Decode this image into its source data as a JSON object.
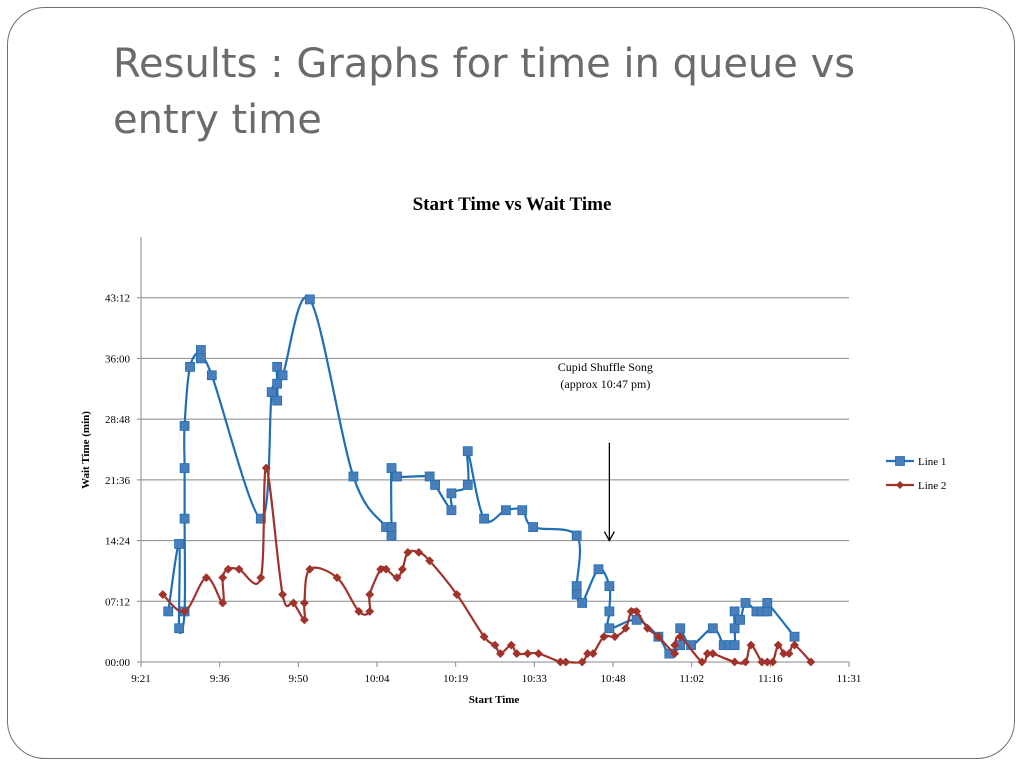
{
  "slide": {
    "title": "Results :  Graphs for time in queue vs entry time"
  },
  "chart_data": {
    "type": "line",
    "title": "Start Time vs Wait Time",
    "xlabel": "Start Time",
    "ylabel": "Wait Time (min)",
    "x_ticks": [
      "9:21",
      "9:36",
      "9:50",
      "10:04",
      "10:19",
      "10:33",
      "10:48",
      "11:02",
      "11:16",
      "11:31"
    ],
    "y_ticks": [
      "00:00",
      "07:12",
      "14:24",
      "21:36",
      "28:48",
      "36:00",
      "43:12"
    ],
    "xlim": [
      "9:21",
      "11:31"
    ],
    "ylim": [
      "00:00",
      "50:24"
    ],
    "grid": "horizontal",
    "legend_position": "right",
    "annotation": {
      "lines": [
        "Cupid Shuffle Song",
        "(approx 10:47 pm)"
      ],
      "arrow_x": "10:47",
      "arrow_from_y": "26:00",
      "arrow_to_y": "14:24"
    },
    "series": [
      {
        "name": "Line 1",
        "color": "#1f6fb4",
        "marker_color": "#4a7ebb",
        "marker": "square",
        "points": [
          [
            "9:26",
            "06:00"
          ],
          [
            "9:28",
            "14:00"
          ],
          [
            "9:28",
            "04:00"
          ],
          [
            "9:29",
            "06:00"
          ],
          [
            "9:29",
            "17:00"
          ],
          [
            "9:29",
            "23:00"
          ],
          [
            "9:29",
            "28:00"
          ],
          [
            "9:30",
            "35:00"
          ],
          [
            "9:32",
            "37:00"
          ],
          [
            "9:32",
            "36:00"
          ],
          [
            "9:34",
            "34:00"
          ],
          [
            "9:43",
            "17:00"
          ],
          [
            "9:45",
            "32:00"
          ],
          [
            "9:46",
            "31:00"
          ],
          [
            "9:46",
            "33:00"
          ],
          [
            "9:46",
            "35:00"
          ],
          [
            "9:47",
            "34:00"
          ],
          [
            "9:52",
            "43:00"
          ],
          [
            "10:00",
            "22:00"
          ],
          [
            "10:06",
            "16:00"
          ],
          [
            "10:07",
            "15:00"
          ],
          [
            "10:07",
            "16:00"
          ],
          [
            "10:07",
            "23:00"
          ],
          [
            "10:08",
            "22:00"
          ],
          [
            "10:14",
            "22:00"
          ],
          [
            "10:15",
            "21:00"
          ],
          [
            "10:18",
            "18:00"
          ],
          [
            "10:18",
            "20:00"
          ],
          [
            "10:21",
            "21:00"
          ],
          [
            "10:21",
            "25:00"
          ],
          [
            "10:24",
            "17:00"
          ],
          [
            "10:28",
            "18:00"
          ],
          [
            "10:31",
            "18:00"
          ],
          [
            "10:33",
            "16:00"
          ],
          [
            "10:41",
            "15:00"
          ],
          [
            "10:41",
            "09:00"
          ],
          [
            "10:41",
            "08:00"
          ],
          [
            "10:42",
            "07:00"
          ],
          [
            "10:45",
            "11:00"
          ],
          [
            "10:47",
            "09:00"
          ],
          [
            "10:47",
            "06:00"
          ],
          [
            "10:47",
            "04:00"
          ],
          [
            "10:52",
            "05:00"
          ],
          [
            "10:56",
            "03:00"
          ],
          [
            "10:58",
            "01:00"
          ],
          [
            "11:00",
            "02:00"
          ],
          [
            "11:00",
            "04:00"
          ],
          [
            "11:02",
            "02:00"
          ],
          [
            "11:06",
            "04:00"
          ],
          [
            "11:08",
            "02:00"
          ],
          [
            "11:09",
            "02:00"
          ],
          [
            "11:10",
            "02:00"
          ],
          [
            "11:10",
            "04:00"
          ],
          [
            "11:10",
            "06:00"
          ],
          [
            "11:11",
            "05:00"
          ],
          [
            "11:12",
            "07:00"
          ],
          [
            "11:14",
            "06:00"
          ],
          [
            "11:15",
            "06:00"
          ],
          [
            "11:16",
            "06:00"
          ],
          [
            "11:16",
            "07:00"
          ],
          [
            "11:21",
            "03:00"
          ]
        ]
      },
      {
        "name": "Line 2",
        "color": "#a0332b",
        "marker_color": "#a0332b",
        "marker": "diamond",
        "points": [
          [
            "9:25",
            "08:00"
          ],
          [
            "9:29",
            "06:00"
          ],
          [
            "9:33",
            "10:00"
          ],
          [
            "9:36",
            "07:00"
          ],
          [
            "9:36",
            "10:00"
          ],
          [
            "9:37",
            "11:00"
          ],
          [
            "9:39",
            "11:00"
          ],
          [
            "9:43",
            "10:00"
          ],
          [
            "9:44",
            "23:00"
          ],
          [
            "9:47",
            "08:00"
          ],
          [
            "9:49",
            "07:00"
          ],
          [
            "9:51",
            "05:00"
          ],
          [
            "9:51",
            "07:00"
          ],
          [
            "9:52",
            "11:00"
          ],
          [
            "9:57",
            "10:00"
          ],
          [
            "10:01",
            "06:00"
          ],
          [
            "10:03",
            "06:00"
          ],
          [
            "10:03",
            "08:00"
          ],
          [
            "10:05",
            "11:00"
          ],
          [
            "10:06",
            "11:00"
          ],
          [
            "10:08",
            "10:00"
          ],
          [
            "10:09",
            "11:00"
          ],
          [
            "10:10",
            "13:00"
          ],
          [
            "10:12",
            "13:00"
          ],
          [
            "10:14",
            "12:00"
          ],
          [
            "10:19",
            "08:00"
          ],
          [
            "10:24",
            "03:00"
          ],
          [
            "10:26",
            "02:00"
          ],
          [
            "10:27",
            "01:00"
          ],
          [
            "10:29",
            "02:00"
          ],
          [
            "10:30",
            "01:00"
          ],
          [
            "10:32",
            "01:00"
          ],
          [
            "10:34",
            "01:00"
          ],
          [
            "10:38",
            "00:00"
          ],
          [
            "10:39",
            "00:00"
          ],
          [
            "10:42",
            "00:00"
          ],
          [
            "10:43",
            "01:00"
          ],
          [
            "10:44",
            "01:00"
          ],
          [
            "10:46",
            "03:00"
          ],
          [
            "10:48",
            "03:00"
          ],
          [
            "10:50",
            "04:00"
          ],
          [
            "10:51",
            "06:00"
          ],
          [
            "10:52",
            "06:00"
          ],
          [
            "10:54",
            "04:00"
          ],
          [
            "10:56",
            "03:00"
          ],
          [
            "10:59",
            "01:00"
          ],
          [
            "10:59",
            "02:00"
          ],
          [
            "11:00",
            "03:00"
          ],
          [
            "11:04",
            "00:00"
          ],
          [
            "11:05",
            "01:00"
          ],
          [
            "11:06",
            "01:00"
          ],
          [
            "11:10",
            "00:00"
          ],
          [
            "11:12",
            "00:00"
          ],
          [
            "11:13",
            "02:00"
          ],
          [
            "11:15",
            "00:00"
          ],
          [
            "11:16",
            "00:00"
          ],
          [
            "11:17",
            "00:00"
          ],
          [
            "11:18",
            "02:00"
          ],
          [
            "11:19",
            "01:00"
          ],
          [
            "11:20",
            "01:00"
          ],
          [
            "11:21",
            "02:00"
          ],
          [
            "11:24",
            "00:00"
          ]
        ]
      }
    ]
  }
}
